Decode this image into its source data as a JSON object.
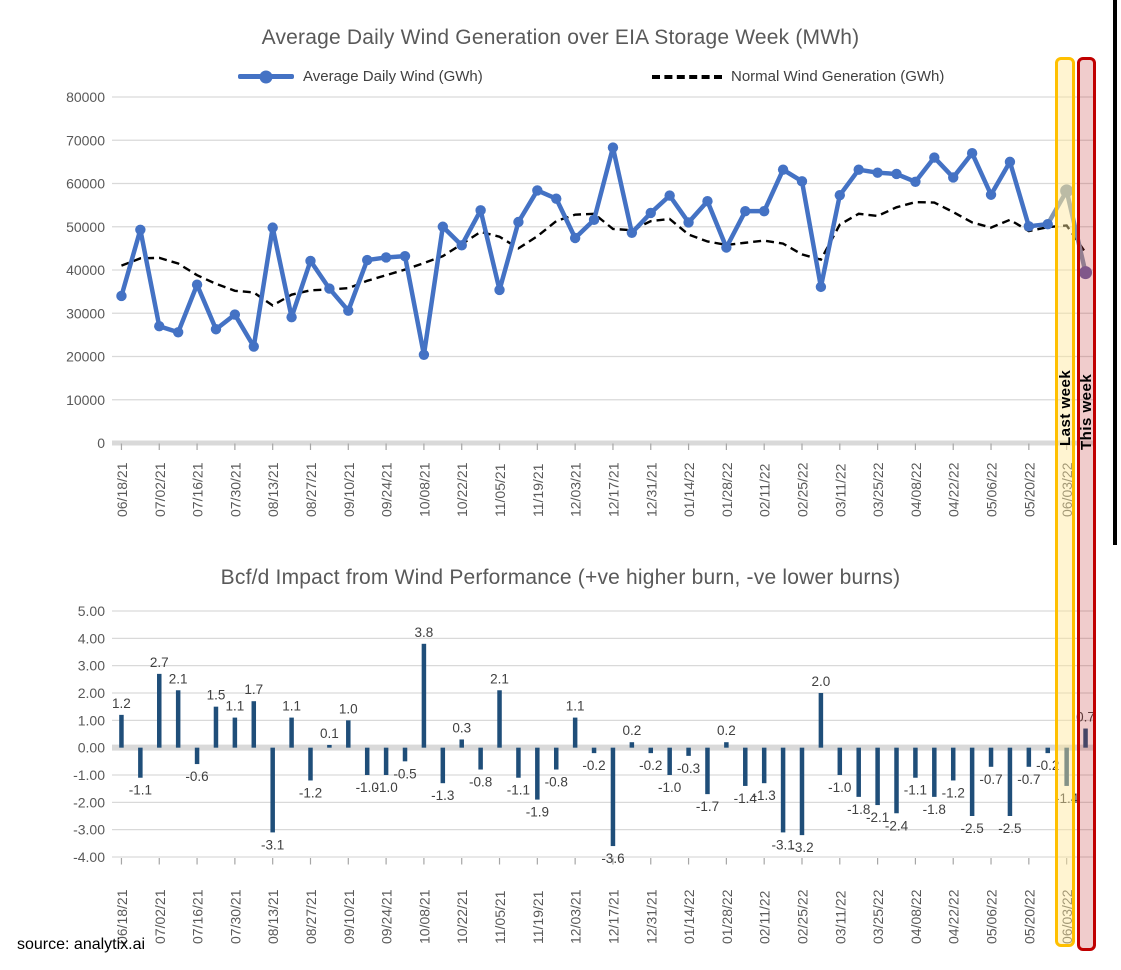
{
  "annotations": {
    "last_week_label": "Last week",
    "this_week_label": "This week",
    "source": "source: analytix.ai"
  },
  "colors": {
    "actual_line": "#4472C4",
    "normal_line": "#000000",
    "late_segment": "#8497B0",
    "this_week_marker": "#6C66A9",
    "bar": "#1F4E79",
    "gridline": "#D9D9D9",
    "axis_text": "#595959",
    "bar_label_text": "#404040",
    "highlight_yellow": "#FFC000",
    "highlight_red": "#C00000"
  },
  "chart_data": [
    {
      "type": "line",
      "title": "Average Daily Wind Generation over EIA Storage Week (MWh)",
      "xlabel": "",
      "ylabel": "",
      "ylim": [
        0,
        80000
      ],
      "ytick_step": 10000,
      "grid": true,
      "legend_position": "top",
      "categories": [
        "06/18/21",
        "06/25/21",
        "07/02/21",
        "07/09/21",
        "07/16/21",
        "07/23/21",
        "07/30/21",
        "08/06/21",
        "08/13/21",
        "08/20/21",
        "08/27/21",
        "09/03/21",
        "09/10/21",
        "09/17/21",
        "09/24/21",
        "10/01/21",
        "10/08/21",
        "10/15/21",
        "10/22/21",
        "10/29/21",
        "11/05/21",
        "11/12/21",
        "11/19/21",
        "11/26/21",
        "12/03/21",
        "12/10/21",
        "12/17/21",
        "12/24/21",
        "12/31/21",
        "01/07/22",
        "01/14/22",
        "01/21/22",
        "01/28/22",
        "02/04/22",
        "02/11/22",
        "02/18/22",
        "02/25/22",
        "03/04/22",
        "03/11/22",
        "03/18/22",
        "03/25/22",
        "04/01/22",
        "04/08/22",
        "04/15/22",
        "04/22/22",
        "04/29/22",
        "05/06/22",
        "05/13/22",
        "05/20/22",
        "05/27/22",
        "06/03/22",
        "06/10/22"
      ],
      "label_every": 2,
      "series": [
        {
          "name": "Average Daily Wind (GWh)",
          "color": "#4472C4",
          "style": "solid-markers",
          "values": [
            34000,
            49300,
            27000,
            25600,
            36600,
            26300,
            29700,
            22300,
            49800,
            29100,
            42100,
            35700,
            30600,
            42300,
            42900,
            43200,
            20400,
            50000,
            45700,
            53800,
            35400,
            51100,
            58400,
            56500,
            47400,
            51600,
            68300,
            48600,
            53200,
            57200,
            51000,
            55900,
            45200,
            53600,
            53600,
            63200,
            60500,
            36100,
            57300,
            63200,
            62500,
            62200,
            60400,
            66000,
            61400,
            67000,
            57400,
            65000,
            50100,
            50600,
            58300,
            39400
          ]
        },
        {
          "name": "Normal Wind Generation (GWh)",
          "color": "#000000",
          "style": "dashed",
          "values": [
            41000,
            42700,
            42800,
            41500,
            38800,
            36800,
            35200,
            34800,
            31800,
            34300,
            35300,
            35500,
            35800,
            37500,
            38800,
            40100,
            41600,
            43200,
            46000,
            48800,
            47700,
            45000,
            47800,
            51300,
            52800,
            53000,
            49500,
            49200,
            51300,
            51800,
            48200,
            46600,
            45800,
            46300,
            46800,
            46100,
            43600,
            42400,
            50500,
            53000,
            52500,
            54500,
            55700,
            55600,
            53400,
            51000,
            49800,
            51600,
            49000,
            49900,
            50300,
            44000
          ]
        }
      ],
      "highlight": {
        "last_week_index": 50,
        "this_week_index": 51,
        "late_segment_color": "#8497B0",
        "last_week_marker_color": "#8497B0",
        "this_week_marker_color": "#6C66A9"
      }
    },
    {
      "type": "bar",
      "title": "Bcf/d Impact from Wind Performance (+ve higher burn, -ve lower burns)",
      "xlabel": "",
      "ylabel": "",
      "ylim": [
        -4,
        5
      ],
      "ytick_step": 1,
      "grid": true,
      "bar_color": "#1F4E79",
      "categories": [
        "06/18/21",
        "06/25/21",
        "07/02/21",
        "07/09/21",
        "07/16/21",
        "07/23/21",
        "07/30/21",
        "08/06/21",
        "08/13/21",
        "08/20/21",
        "08/27/21",
        "09/03/21",
        "09/10/21",
        "09/17/21",
        "09/24/21",
        "10/01/21",
        "10/08/21",
        "10/15/21",
        "10/22/21",
        "10/29/21",
        "11/05/21",
        "11/12/21",
        "11/19/21",
        "11/26/21",
        "12/03/21",
        "12/10/21",
        "12/17/21",
        "12/24/21",
        "12/31/21",
        "01/07/22",
        "01/14/22",
        "01/21/22",
        "01/28/22",
        "02/04/22",
        "02/11/22",
        "02/18/22",
        "02/25/22",
        "03/04/22",
        "03/11/22",
        "03/18/22",
        "03/25/22",
        "04/01/22",
        "04/08/22",
        "04/15/22",
        "04/22/22",
        "04/29/22",
        "05/06/22",
        "05/13/22",
        "05/20/22",
        "05/27/22",
        "06/03/22",
        "06/10/22"
      ],
      "label_every": 2,
      "values": [
        1.2,
        -1.1,
        2.7,
        2.1,
        -0.6,
        1.5,
        1.1,
        1.7,
        -3.1,
        1.1,
        -1.2,
        0.1,
        1.0,
        -1.0,
        -1.0,
        -0.5,
        3.8,
        -1.3,
        0.3,
        -0.8,
        2.1,
        -1.1,
        -1.9,
        -0.8,
        1.1,
        -0.2,
        -3.6,
        0.2,
        -0.2,
        -1.0,
        -0.3,
        -1.7,
        0.2,
        -1.4,
        -1.3,
        -3.1,
        -3.2,
        2.0,
        -1.0,
        -1.8,
        -2.1,
        -2.4,
        -1.1,
        -1.8,
        -1.2,
        -2.5,
        -0.7,
        -2.5,
        -0.7,
        -0.2,
        -1.4,
        0.7
      ]
    }
  ]
}
